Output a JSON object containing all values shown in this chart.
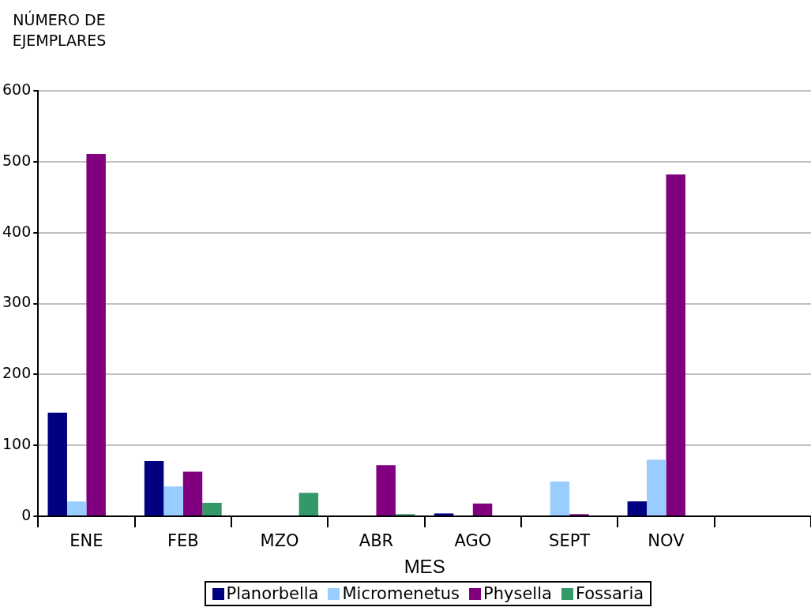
{
  "chart_data": {
    "type": "bar",
    "xlabel": "MES",
    "ylabel": "NÚMERO DE EJEMPLARES",
    "categories": [
      "ENE",
      "FEB",
      "MZO",
      "ABR",
      "AGO",
      "SEPT",
      "NOV",
      null
    ],
    "series": [
      {
        "name": "Planorbella",
        "color": "#000080",
        "values": [
          146,
          78,
          0,
          0,
          4,
          0,
          21,
          null
        ]
      },
      {
        "name": "Micromenetus",
        "color": "#99ccff",
        "values": [
          21,
          42,
          0,
          0,
          0,
          49,
          80,
          null
        ]
      },
      {
        "name": "Physella",
        "color": "#800080",
        "values": [
          511,
          63,
          0,
          72,
          18,
          3,
          482,
          null
        ]
      },
      {
        "name": "Fossaria",
        "color": "#339966",
        "values": [
          0,
          19,
          33,
          3,
          0,
          0,
          0,
          null
        ]
      }
    ],
    "ylim": [
      0,
      600
    ],
    "yticks": [
      0,
      100,
      200,
      300,
      400,
      500,
      600
    ],
    "grid": "y",
    "legend": "bottom"
  }
}
